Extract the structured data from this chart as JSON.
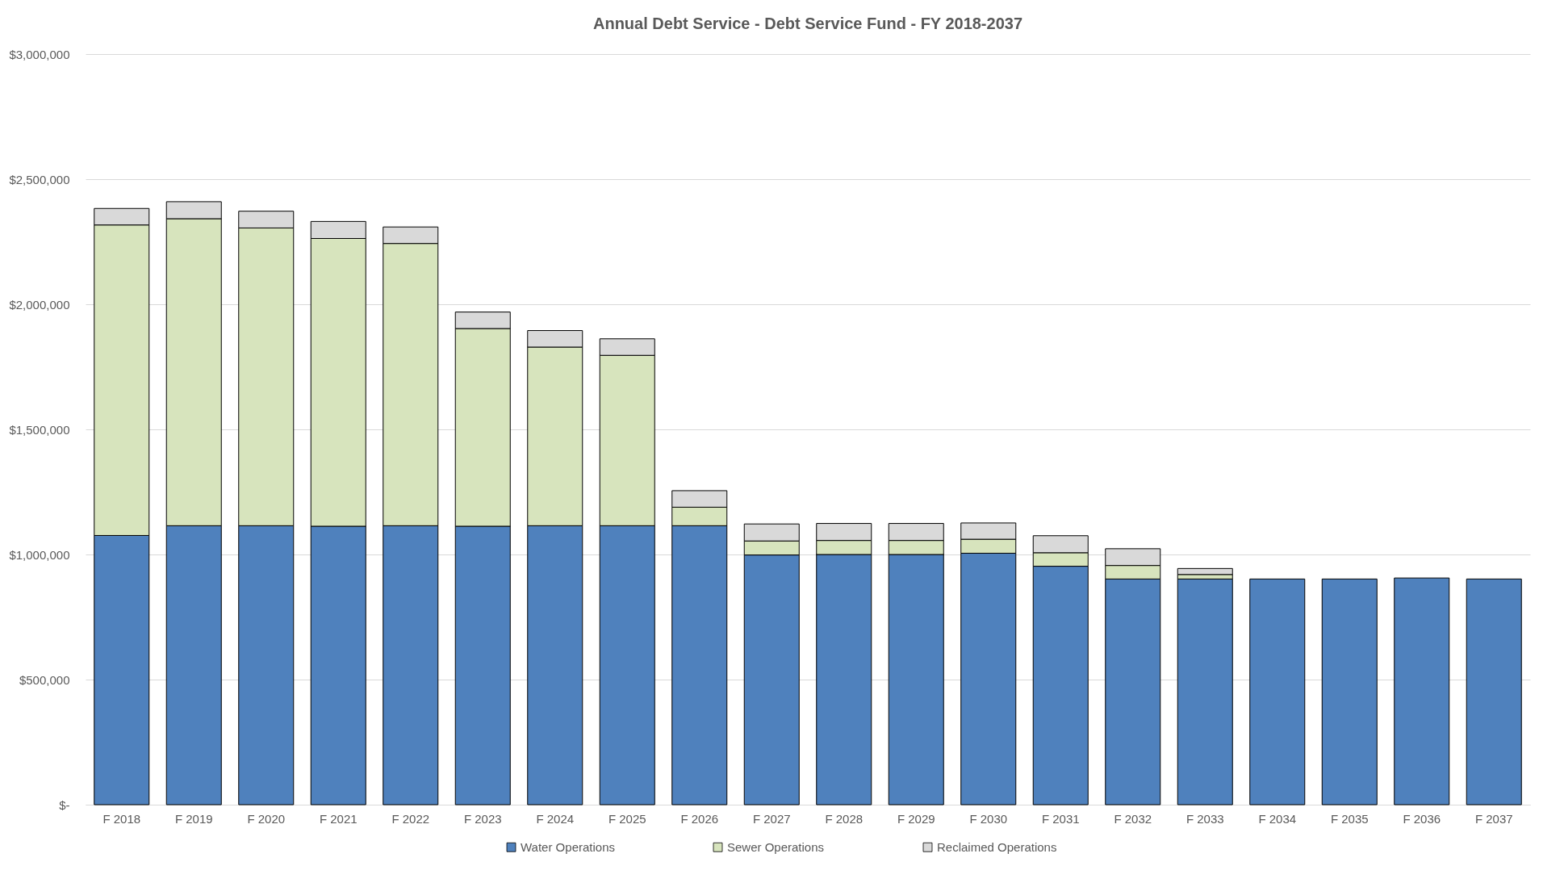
{
  "chart_data": {
    "type": "bar",
    "title": "Annual Debt Service - Debt Service Fund - FY 2018-2037",
    "stacked": true,
    "categories": [
      "F 2018",
      "F 2019",
      "F 2020",
      "F 2021",
      "F 2022",
      "F 2023",
      "F 2024",
      "F 2025",
      "F 2026",
      "F 2027",
      "F 2028",
      "F 2029",
      "F 2030",
      "F 2031",
      "F 2032",
      "F 2033",
      "F 2034",
      "F 2035",
      "F 2036",
      "F 2037"
    ],
    "series": [
      {
        "name": "Water Operations",
        "color": "#4f81bd",
        "values": [
          1076000,
          1115000,
          1115000,
          1113000,
          1115000,
          1113000,
          1115000,
          1115000,
          1115000,
          998000,
          1000000,
          1000000,
          1005000,
          953000,
          902000,
          902000,
          902000,
          902000,
          906000,
          902000
        ]
      },
      {
        "name": "Sewer Operations",
        "color": "#d7e4bd",
        "values": [
          1241000,
          1227000,
          1190000,
          1150000,
          1128000,
          790000,
          714000,
          681000,
          74000,
          56000,
          56000,
          56000,
          56000,
          54000,
          54000,
          18000,
          null,
          null,
          null,
          null
        ]
      },
      {
        "name": "Reclaimed Operations",
        "color": "#d9d9d9",
        "values": [
          66000,
          68000,
          67000,
          68000,
          66000,
          66000,
          66000,
          66000,
          66000,
          68000,
          68000,
          68000,
          65000,
          68000,
          67000,
          24000,
          null,
          null,
          null,
          null
        ]
      }
    ],
    "ylim": [
      0,
      3000000
    ],
    "yticks": [
      {
        "value": 0,
        "label": "$-"
      },
      {
        "value": 500000,
        "label": "$500,000"
      },
      {
        "value": 1000000,
        "label": "$1,000,000"
      },
      {
        "value": 1500000,
        "label": "$1,500,000"
      },
      {
        "value": 2000000,
        "label": "$2,000,000"
      },
      {
        "value": 2500000,
        "label": "$2,500,000"
      },
      {
        "value": 3000000,
        "label": "$3,000,000"
      }
    ],
    "grid": "y",
    "legend": "bottom"
  }
}
